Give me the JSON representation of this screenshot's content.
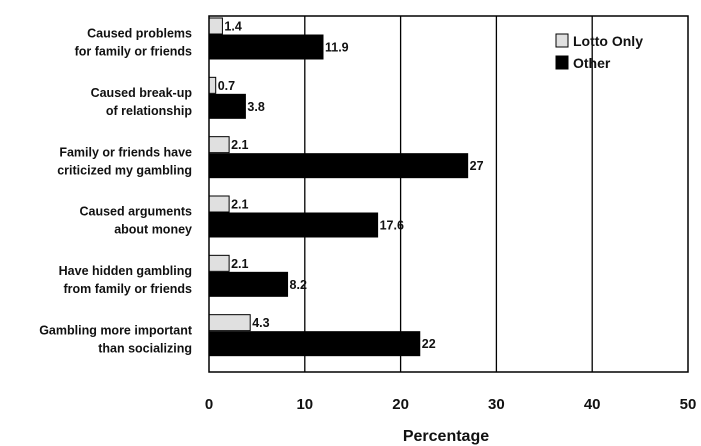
{
  "chart_data": {
    "type": "bar",
    "orientation": "horizontal",
    "categories": [
      [
        "Caused problems",
        "for family or friends"
      ],
      [
        "Caused break-up",
        "of relationship"
      ],
      [
        "Family or friends have",
        "criticized my gambling"
      ],
      [
        "Caused arguments",
        "about money"
      ],
      [
        "Have hidden gambling",
        "from family or friends"
      ],
      [
        "Gambling more important",
        "than socializing"
      ]
    ],
    "series": [
      {
        "name": "Lotto Only",
        "values": [
          1.4,
          0.7,
          2.1,
          2.1,
          2.1,
          4.3
        ],
        "labels": [
          "1.4",
          "0.7",
          "2.1",
          "2.1",
          "2.1",
          "4.3"
        ],
        "color": "#e0e0e0"
      },
      {
        "name": "Other",
        "values": [
          11.9,
          3.8,
          27,
          17.6,
          8.2,
          22
        ],
        "labels": [
          "11.9",
          "3.8",
          "27",
          "17.6",
          "8.2",
          "22"
        ],
        "color": "#000000"
      }
    ],
    "xlabel": "Percentage",
    "xlim": [
      0,
      50
    ],
    "xticks": [
      0,
      10,
      20,
      30,
      40,
      50
    ],
    "grid": "vertical",
    "legend": "top-right"
  }
}
